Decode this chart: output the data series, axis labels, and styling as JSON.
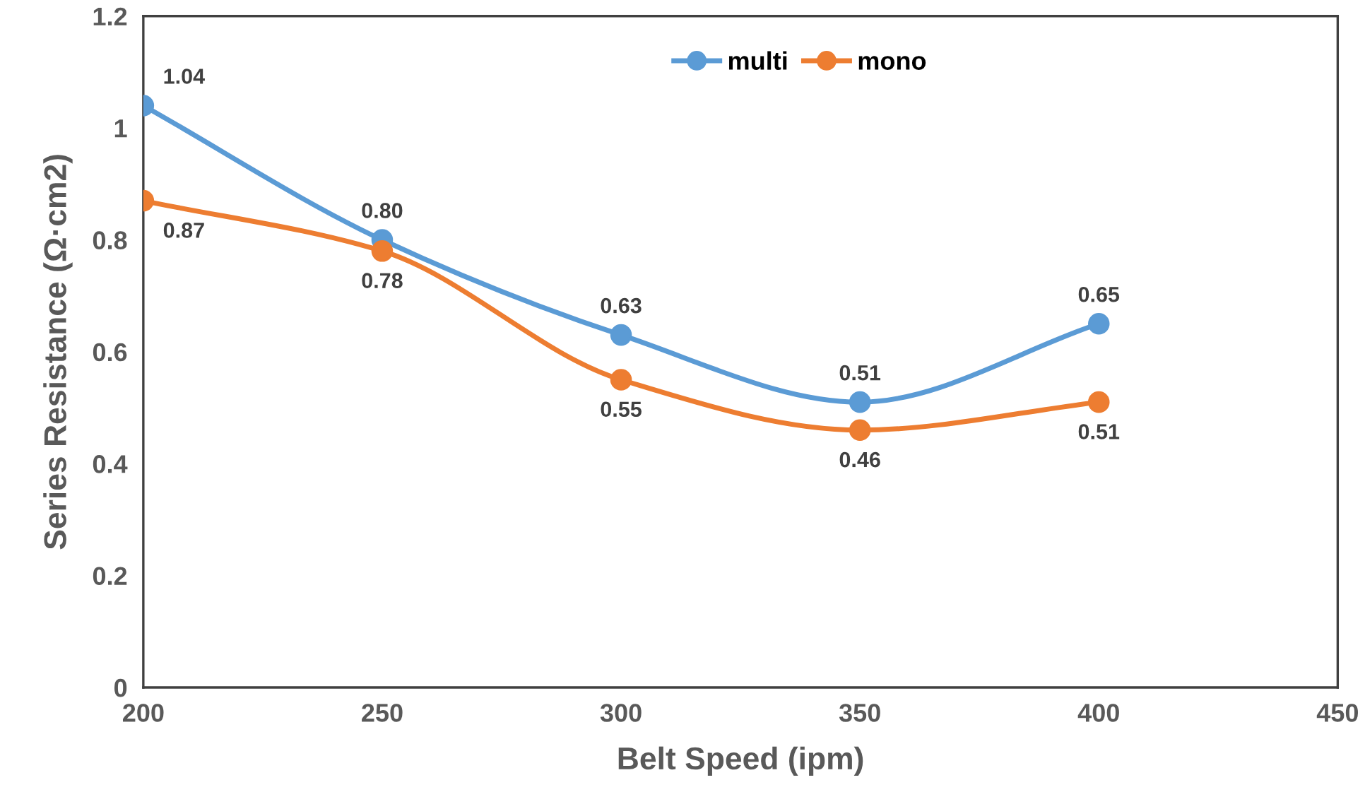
{
  "chart_data": {
    "type": "line",
    "xlabel": "Belt Speed (ipm)",
    "ylabel": "Series Resistance (Ω·cm2)",
    "x": [
      200,
      250,
      300,
      350,
      400
    ],
    "series": [
      {
        "name": "multi",
        "color": "#5b9bd5",
        "values": [
          1.04,
          0.8,
          0.63,
          0.51,
          0.65
        ],
        "value_labels": [
          "1.04",
          "0.80",
          "0.63",
          "0.51",
          "0.65"
        ]
      },
      {
        "name": "mono",
        "color": "#ed7d31",
        "values": [
          0.87,
          0.78,
          0.55,
          0.46,
          0.51
        ],
        "value_labels": [
          "0.87",
          "0.78",
          "0.55",
          "0.46",
          "0.51"
        ]
      }
    ],
    "xlim": [
      200,
      450
    ],
    "xticks": [
      200,
      250,
      300,
      350,
      400,
      450
    ],
    "ylim": [
      0,
      1.2
    ],
    "yticks": [
      0,
      0.2,
      0.4,
      0.6,
      0.8,
      1,
      1.2
    ],
    "grid": false,
    "legend": "top",
    "marker": "circle",
    "line_style": "solid"
  }
}
